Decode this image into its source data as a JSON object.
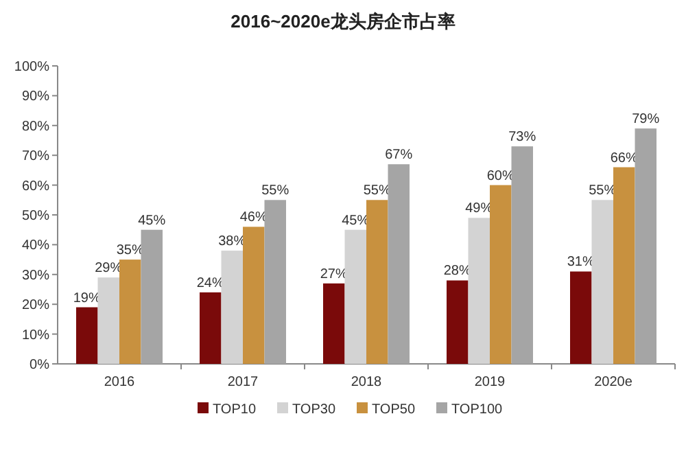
{
  "chart_data": {
    "type": "bar",
    "title": "2016~2020e龙头房企市占率",
    "categories": [
      "2016",
      "2017",
      "2018",
      "2019",
      "2020e"
    ],
    "series": [
      {
        "name": "TOP10",
        "color": "#7a0a0a",
        "values": [
          19,
          24,
          27,
          28,
          31
        ],
        "value_labels": [
          "19%",
          "24%",
          "27%",
          "28%",
          "31%"
        ]
      },
      {
        "name": "TOP30",
        "color": "#d3d3d3",
        "values": [
          29,
          38,
          45,
          49,
          55
        ],
        "value_labels": [
          "29%",
          "38%",
          "45%",
          "49%",
          "55%"
        ]
      },
      {
        "name": "TOP50",
        "color": "#c8913f",
        "values": [
          35,
          46,
          55,
          60,
          66
        ],
        "value_labels": [
          "35%",
          "46%",
          "55%",
          "60%",
          "66%"
        ]
      },
      {
        "name": "TOP100",
        "color": "#a5a5a5",
        "values": [
          45,
          55,
          67,
          73,
          79
        ],
        "value_labels": [
          "45%",
          "55%",
          "67%",
          "73%",
          "79%"
        ]
      }
    ],
    "ylim": [
      0,
      100
    ],
    "yticks": [
      {
        "value": 0,
        "label": "0%"
      },
      {
        "value": 10,
        "label": "10%"
      },
      {
        "value": 20,
        "label": "20%"
      },
      {
        "value": 30,
        "label": "30%"
      },
      {
        "value": 40,
        "label": "40%"
      },
      {
        "value": 50,
        "label": "50%"
      },
      {
        "value": 60,
        "label": "60%"
      },
      {
        "value": 70,
        "label": "70%"
      },
      {
        "value": 80,
        "label": "80%"
      },
      {
        "value": 90,
        "label": "90%"
      },
      {
        "value": 100,
        "label": "100%"
      }
    ],
    "grid": false,
    "legend": "bottom"
  }
}
